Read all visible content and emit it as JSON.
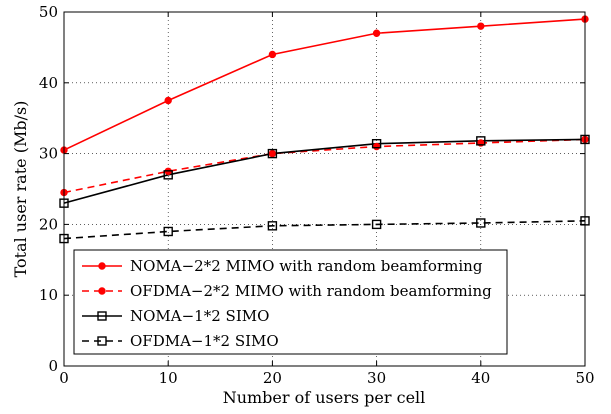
{
  "chart_data": {
    "type": "line",
    "xlabel": "Number of users per cell",
    "ylabel": "Total user rate (Mb/s)",
    "xlim": [
      0,
      50
    ],
    "ylim": [
      0,
      50
    ],
    "xticks": [
      "0",
      "10",
      "20",
      "30",
      "40",
      "50"
    ],
    "yticks": [
      "0",
      "10",
      "20",
      "30",
      "40",
      "50"
    ],
    "grid": true,
    "legend_position": "bottom-left",
    "x": [
      0,
      10,
      20,
      30,
      40,
      50
    ],
    "series": [
      {
        "name": "NOMA−2*2 MIMO with random beamforming",
        "values": [
          30.5,
          37.5,
          44,
          47,
          48,
          49
        ],
        "color": "#ff0000",
        "dash": "solid",
        "marker": "dot"
      },
      {
        "name": "OFDMA−2*2 MIMO with random beamforming",
        "values": [
          24.5,
          27.5,
          30,
          31,
          31.5,
          32
        ],
        "color": "#ff0000",
        "dash": "dashed",
        "marker": "dot"
      },
      {
        "name": "NOMA−1*2 SIMO",
        "values": [
          23,
          27,
          30,
          31.4,
          31.8,
          32
        ],
        "color": "#000000",
        "dash": "solid",
        "marker": "square"
      },
      {
        "name": "OFDMA−1*2 SIMO",
        "values": [
          18,
          19,
          19.8,
          20,
          20.2,
          20.5
        ],
        "color": "#000000",
        "dash": "dashed",
        "marker": "square"
      }
    ]
  }
}
